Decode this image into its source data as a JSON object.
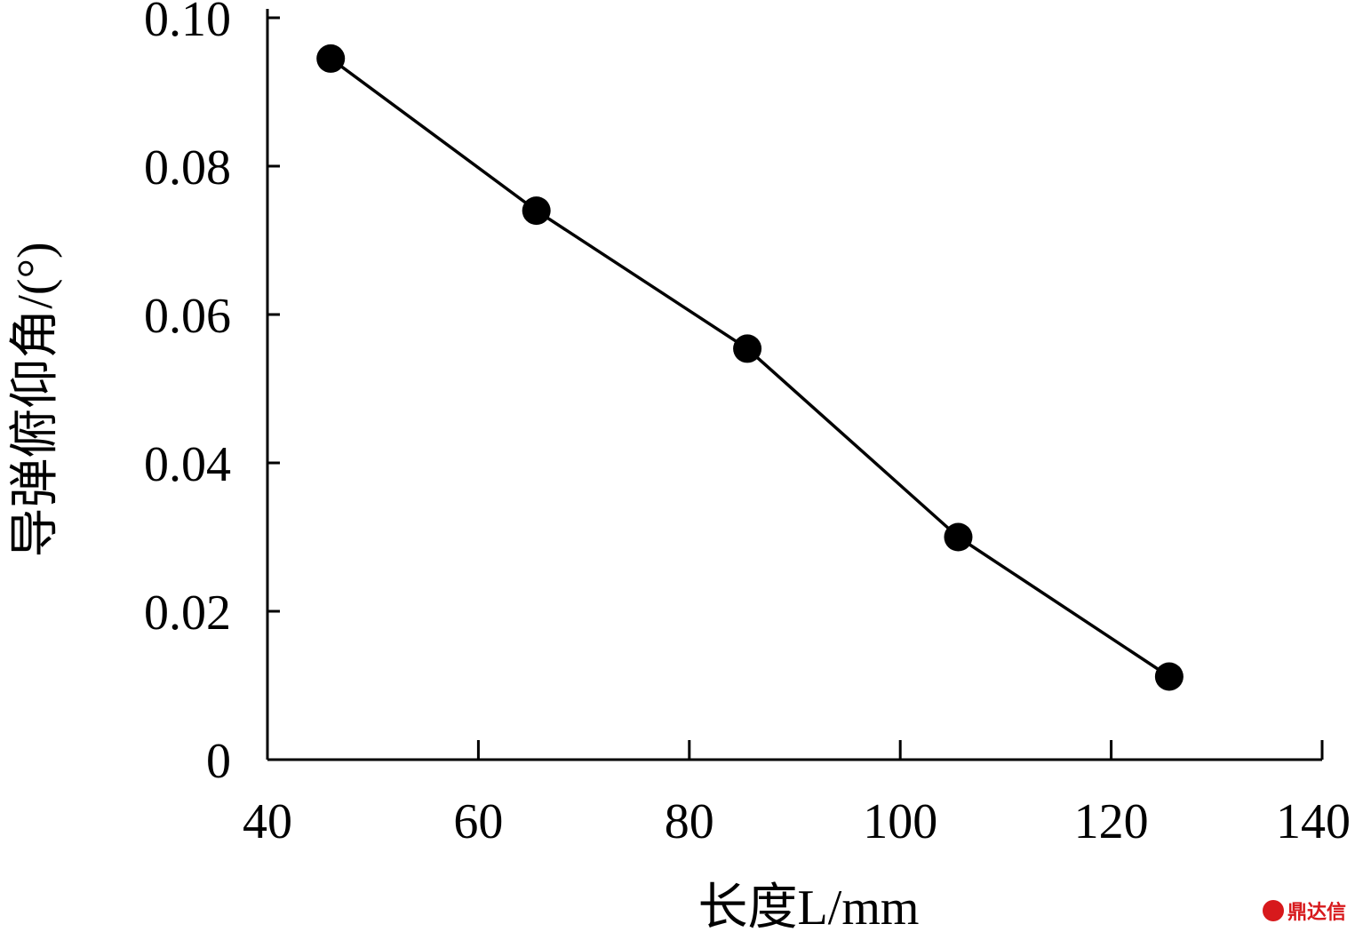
{
  "chart_data": {
    "type": "line",
    "title": "",
    "xlabel": "长度L/mm",
    "ylabel": "导弹俯仰角/(°)",
    "xlim": [
      40,
      140
    ],
    "ylim": [
      0,
      0.1
    ],
    "x_ticks": [
      "40",
      "60",
      "80",
      "100",
      "120",
      "140"
    ],
    "y_ticks": [
      "0",
      "0.02",
      "0.04",
      "0.06",
      "0.08",
      "0.10"
    ],
    "grid": false,
    "legend": "none",
    "series": [
      {
        "x": [
          46,
          65.5,
          85.5,
          105.5,
          125.5
        ],
        "values": [
          0.0945,
          0.074,
          0.0554,
          0.03,
          0.0112
        ],
        "color": "#000000",
        "marker": "filled-circle"
      }
    ]
  },
  "watermark": {
    "text": "鼎达信",
    "color": "#d7191c"
  }
}
